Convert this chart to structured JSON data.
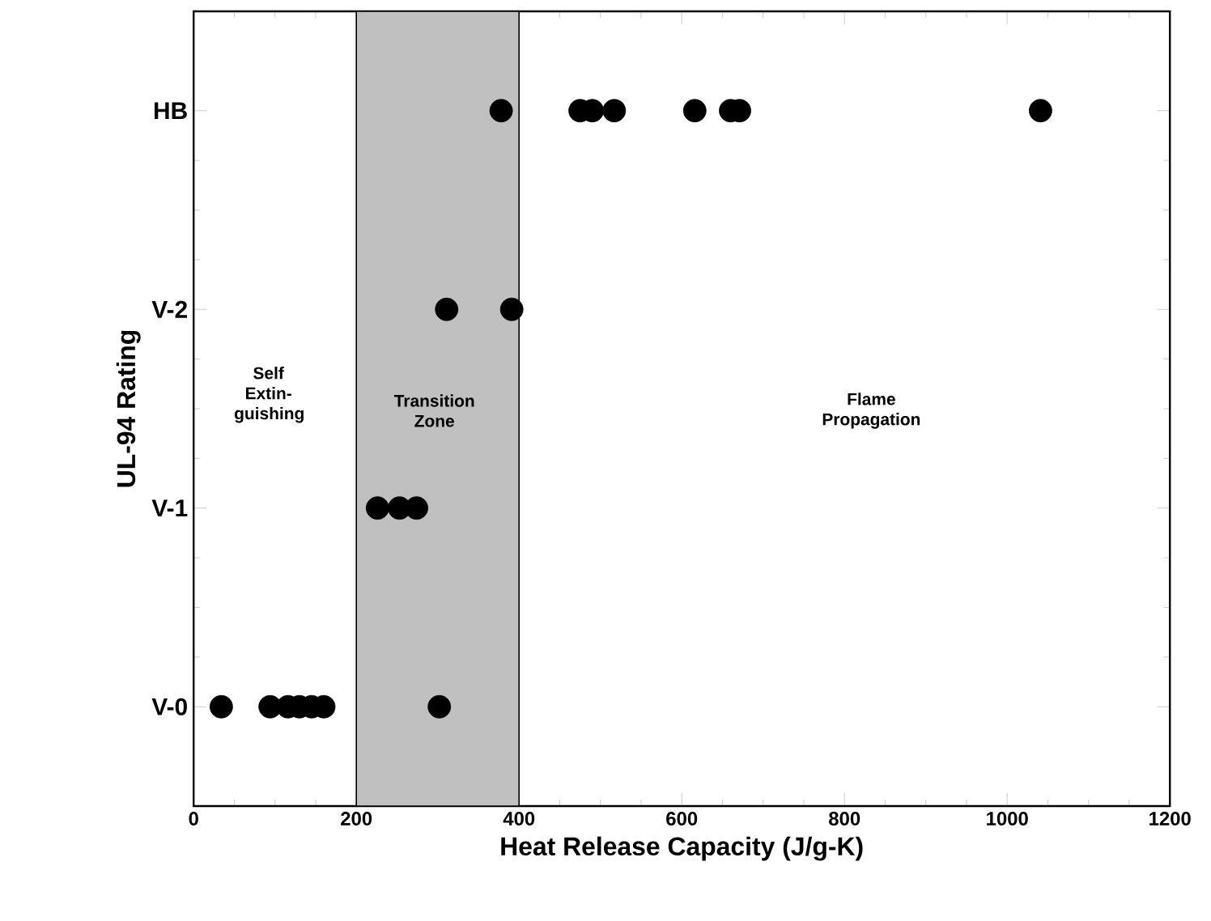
{
  "chart_data": {
    "type": "scatter",
    "orientation": "horizontal",
    "xlabel": "Heat Release Capacity (J/g-K)",
    "ylabel": "UL-94 Rating",
    "categories": [
      "HB",
      "V-2",
      "V-1",
      "V-0"
    ],
    "series": [
      {
        "color": "#000000",
        "values": [
          378,
          311,
          226,
          34
        ]
      },
      {
        "color": "#000000",
        "values": [
          475,
          391,
          253,
          94
        ]
      },
      {
        "color": "#000000",
        "values": [
          490,
          null,
          274,
          116
        ]
      },
      {
        "color": "#000000",
        "values": [
          517,
          null,
          null,
          130
        ]
      },
      {
        "color": "#000000",
        "values": [
          616,
          null,
          null,
          145
        ]
      },
      {
        "color": "#000000",
        "values": [
          660,
          null,
          null,
          160
        ]
      },
      {
        "color": "#000000",
        "values": [
          671,
          null,
          null,
          302
        ]
      },
      {
        "color": "#000000",
        "values": [
          1041,
          null,
          null,
          null
        ]
      }
    ],
    "marker": "circle",
    "grid": false,
    "xlim": [
      0,
      1200
    ],
    "xticks": [
      0,
      200,
      400,
      600,
      800,
      1000,
      1200
    ],
    "bands": [
      {
        "axis": "x",
        "from": 200,
        "to": 400,
        "color": "#c0c0c0"
      }
    ],
    "annotations": [
      "Self Extin-guishing",
      "Transition Zone",
      "Flame Propagation"
    ]
  }
}
